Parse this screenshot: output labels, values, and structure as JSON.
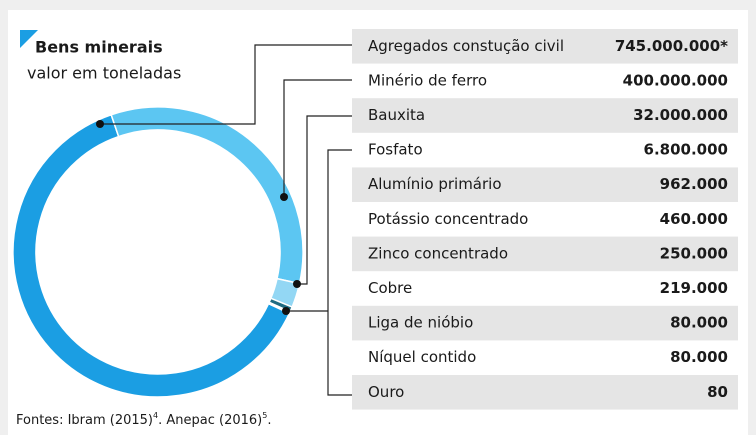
{
  "chart_data": {
    "type": "donut",
    "title": "Bens minerais",
    "subtitle": "valor em toneladas",
    "categories": [
      "Agregados constução civil",
      "Minério de ferro",
      "Bauxita",
      "Fosfato",
      "Alumínio primário",
      "Potássio concentrado",
      "Zinco concentrado",
      "Cobre",
      "Liga de nióbio",
      "Níquel contido",
      "Ouro"
    ],
    "values": [
      745000000,
      400000000,
      32000000,
      6800000,
      962000,
      460000,
      250000,
      219000,
      80000,
      80000,
      80
    ],
    "value_labels": [
      "745.000.000*",
      "400.000.000",
      "32.000.000",
      "6.800.000",
      "962.000",
      "460.000",
      "250.000",
      "219.000",
      "80.000",
      "80.000",
      "80"
    ],
    "colors": [
      "#1b9ee3",
      "#5cc6f2",
      "#93d7f4",
      "#1f6b82",
      "#2a8fc0",
      "#2a8fc0",
      "#2a8fc0",
      "#2a8fc0",
      "#2a8fc0",
      "#2a8fc0",
      "#2a8fc0"
    ],
    "source": [
      "Fontes: Ibram (2015)",
      "4",
      ". Anepac (2016)",
      "5",
      "."
    ]
  }
}
